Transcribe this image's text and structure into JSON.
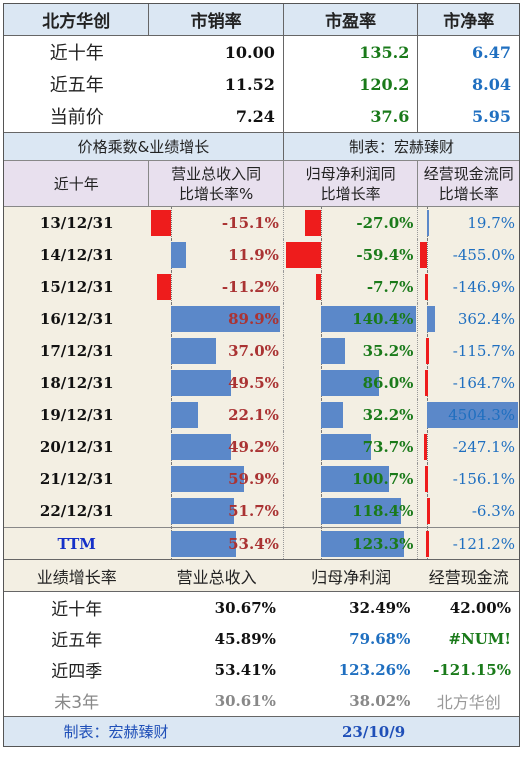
{
  "valuation": {
    "headers": [
      "北方华创",
      "市销率",
      "市盈率",
      "市净率"
    ],
    "rows": [
      {
        "label": "近十年",
        "ps": "10.00",
        "pe": "135.2",
        "pb": "6.47"
      },
      {
        "label": "近五年",
        "ps": "11.52",
        "pe": "120.2",
        "pb": "8.04"
      },
      {
        "label": "当前价",
        "ps": "7.24",
        "pe": "37.6",
        "pb": "5.95"
      }
    ]
  },
  "growth_section": {
    "title_left": "价格乘数&业绩增长",
    "title_right": "制表：宏赫臻财",
    "col_headers": [
      "近十年",
      "营业总收入同\n比增长率%",
      "归母净利润同\n比增长率",
      "经营现金流同\n比增长率"
    ]
  },
  "chart_data": {
    "type": "table",
    "rows": [
      "13/12/31",
      "14/12/31",
      "15/12/31",
      "16/12/31",
      "17/12/31",
      "18/12/31",
      "19/12/31",
      "20/12/31",
      "21/12/31",
      "22/12/31",
      "TTM"
    ],
    "series": [
      {
        "name": "营业总收入同比增长率%",
        "values": [
          -15.1,
          11.9,
          -11.2,
          89.9,
          37.0,
          49.5,
          22.1,
          49.2,
          59.9,
          51.7,
          53.4
        ],
        "labels": [
          "-15.1%",
          "11.9%",
          "-11.2%",
          "89.9%",
          "37.0%",
          "49.5%",
          "22.1%",
          "49.2%",
          "59.9%",
          "51.7%",
          "53.4%"
        ]
      },
      {
        "name": "归母净利润同比增长率",
        "values": [
          -27.0,
          -59.4,
          -7.7,
          140.4,
          35.2,
          86.0,
          32.2,
          73.7,
          100.7,
          118.4,
          123.3
        ],
        "labels": [
          "-27.0%",
          "-59.4%",
          "-7.7%",
          "140.4%",
          "35.2%",
          "86.0%",
          "32.2%",
          "73.7%",
          "100.7%",
          "118.4%",
          "123.3%"
        ]
      },
      {
        "name": "经营现金流同比增长率",
        "values": [
          19.7,
          -455.0,
          -146.9,
          362.4,
          -115.7,
          -164.7,
          4504.3,
          -247.1,
          -156.1,
          -6.3,
          -121.2
        ],
        "labels": [
          "19.7%",
          "-455.0%",
          "-146.9%",
          "362.4%",
          "-115.7%",
          "-164.7%",
          "4504.3%",
          "-247.1%",
          "-156.1%",
          "-6.3%",
          "-121.2%"
        ]
      }
    ]
  },
  "summary": {
    "headers": [
      "业绩增长率",
      "营业总收入",
      "归母净利润",
      "经营现金流"
    ],
    "rows": [
      {
        "label": "近十年",
        "rev": "30.67%",
        "np": "32.49%",
        "cf": "42.00%"
      },
      {
        "label": "近五年",
        "rev": "45.89%",
        "np": "79.68%",
        "cf": "#NUM!"
      },
      {
        "label": "近四季",
        "rev": "53.41%",
        "np": "123.26%",
        "cf": "-121.15%"
      },
      {
        "label": "未3年",
        "rev": "30.61%",
        "np": "38.02%",
        "cf": "北方华创"
      }
    ]
  },
  "footer": {
    "author": "制表：宏赫臻财",
    "date": "23/10/9"
  },
  "colors": {
    "positive_bar": "#5b88c9",
    "negative_bar": "#ee1c1c"
  }
}
